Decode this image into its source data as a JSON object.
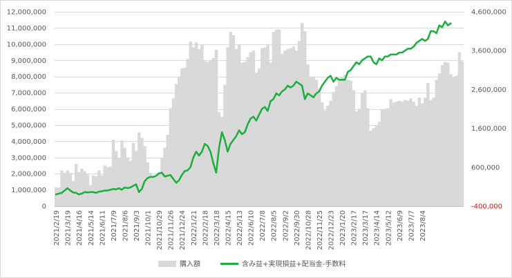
{
  "chart_data": {
    "type": "bar+line",
    "title": "",
    "xlabel": "",
    "ylabel": "",
    "y_left_lim": [
      0,
      12000000
    ],
    "y_left_ticks": [
      "0",
      "1,000,000",
      "2,000,000",
      "3,000,000",
      "4,000,000",
      "5,000,000",
      "6,000,000",
      "7,000,000",
      "8,000,000",
      "9,000,000",
      "10,000,000",
      "11,000,000",
      "12,000,000"
    ],
    "y_right_lim": [
      -400000,
      4600000
    ],
    "y_right_ticks": [
      "-400,000",
      "600,000",
      "1,600,000",
      "2,600,000",
      "3,600,000",
      "4,600,000"
    ],
    "y_right_negative_color": "#ff0000",
    "x_tick_labels": [
      "2021/2/19",
      "2021/3/19",
      "2021/4/16",
      "2021/5/14",
      "2021/6/11",
      "2021/7/9",
      "2021/8/6",
      "2021/9/3",
      "2021/10/1",
      "2021/10/29",
      "2021/11/26",
      "2021/12/24",
      "2022/1/21",
      "2022/2/18",
      "2022/3/18",
      "2022/4/15",
      "2022/5/13",
      "2022/6/10",
      "2022/7/8",
      "2022/8/5",
      "2022/9/2",
      "2022/9/30",
      "2022/10/28",
      "2022/11/25",
      "2022/12/23",
      "2023/1/20",
      "2023/2/17",
      "2023/3/17",
      "2023/4/14",
      "2023/5/12",
      "2023/6/9",
      "2023/7/7",
      "2023/8/4"
    ],
    "grid": true,
    "legend_position": "bottom",
    "series": [
      {
        "name": "購入額",
        "type": "bar",
        "axis": "left",
        "color": "#d9d9d9",
        "values": [
          1150000,
          1150000,
          2200000,
          2050000,
          2200000,
          2050000,
          1550000,
          2600000,
          2100000,
          2300000,
          2150000,
          1950000,
          1300000,
          1900000,
          1850000,
          2200000,
          1900000,
          2500000,
          2400000,
          2450000,
          4100000,
          3400000,
          2950000,
          4050000,
          3600000,
          3000000,
          2800000,
          3900000,
          3400000,
          4550000,
          4200000,
          3700000,
          2700000,
          2050000,
          1850000,
          1900000,
          2100000,
          3000000,
          3600000,
          4400000,
          6050000,
          6650000,
          7550000,
          8000000,
          8500000,
          8550000,
          9100000,
          10150000,
          9800000,
          10100000,
          9700000,
          9950000,
          8950000,
          8900000,
          9000000,
          9150000,
          9650000,
          5800000,
          5500000,
          7500000,
          9800000,
          10750000,
          10550000,
          9700000,
          9950000,
          8850000,
          8900000,
          9200000,
          9500000,
          9600000,
          8250000,
          8500000,
          9750000,
          9800000,
          10000000,
          8850000,
          10750000,
          10900000,
          10900000,
          9400000,
          9600000,
          9700000,
          9750000,
          9850000,
          9600000,
          10200000,
          11300000,
          10800000,
          8750000,
          8000000,
          8000000,
          7800000,
          7250000,
          6400000,
          5900000,
          6200000,
          6500000,
          7050000,
          7400000,
          7850000,
          7950000,
          8100000,
          7800000,
          7750000,
          7150000,
          5850000,
          6000000,
          7000000,
          7150000,
          6050000,
          4650000,
          4800000,
          5000000,
          5200000,
          5950000,
          6000000,
          6050000,
          6600000,
          6400000,
          6450000,
          6500000,
          6450000,
          6550000,
          6500000,
          6650000,
          6450000,
          6200000,
          6700000,
          6350000,
          6700000,
          7600000,
          6550000,
          6700000,
          7800000,
          8200000,
          8700000,
          8900000,
          8850000,
          8150000,
          7950000,
          8050000,
          9500000,
          8950000
        ]
      },
      {
        "name": "含み益+実現損益+配当金-手数料",
        "type": "line",
        "axis": "right",
        "color": "#1faf3f",
        "values": [
          -100000,
          -80000,
          -60000,
          0,
          60000,
          0,
          -50000,
          -60000,
          -100000,
          -80000,
          -40000,
          -50000,
          -40000,
          -40000,
          -60000,
          -30000,
          -20000,
          0,
          0,
          20000,
          40000,
          30000,
          60000,
          20000,
          80000,
          60000,
          80000,
          120000,
          160000,
          -40000,
          40000,
          240000,
          320000,
          350000,
          350000,
          380000,
          440000,
          460000,
          360000,
          380000,
          400000,
          300000,
          200000,
          260000,
          400000,
          500000,
          520000,
          600000,
          850000,
          1000000,
          900000,
          1000000,
          1200000,
          1150000,
          1000000,
          700000,
          460000,
          1100000,
          1500000,
          1300000,
          1000000,
          1200000,
          1300000,
          1400000,
          1550000,
          1450000,
          1500000,
          1700000,
          1850000,
          1900000,
          1800000,
          1950000,
          2100000,
          2150000,
          2050000,
          2300000,
          2350000,
          2500000,
          2450000,
          2550000,
          2600000,
          2700000,
          2650000,
          2700000,
          2800000,
          2750000,
          2700000,
          2350000,
          2500000,
          2450000,
          2400000,
          2500000,
          2550000,
          2700000,
          2800000,
          2900000,
          2950000,
          2800000,
          2900000,
          2850000,
          2850000,
          2850000,
          3050000,
          3100000,
          3200000,
          3300000,
          3250000,
          3350000,
          3400000,
          3450000,
          3450000,
          3300000,
          3250000,
          3400000,
          3350000,
          3450000,
          3450000,
          3500000,
          3500000,
          3500000,
          3550000,
          3550000,
          3600000,
          3650000,
          3650000,
          3700000,
          3800000,
          3850000,
          3900000,
          3850000,
          3900000,
          4100000,
          4100000,
          4050000,
          4250000,
          4200000,
          4350000,
          4250000,
          4300000
        ]
      }
    ]
  }
}
